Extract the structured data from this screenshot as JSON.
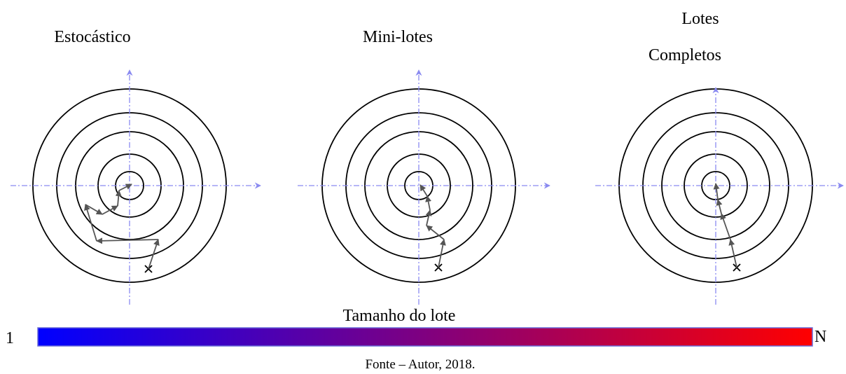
{
  "panels": [
    {
      "title": [
        "Estocástico"
      ]
    },
    {
      "title": [
        "Mini-lotes"
      ]
    },
    {
      "title": [
        "Lotes",
        "Completos"
      ]
    }
  ],
  "colorbar": {
    "title": "Tamanho do lote",
    "min_label": "1",
    "max_label": "N"
  },
  "caption": "Fonte – Autor, 2018."
}
